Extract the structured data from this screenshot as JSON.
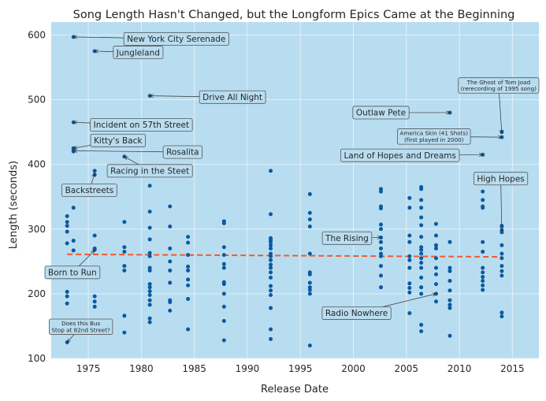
{
  "chart_data": {
    "type": "scatter",
    "title": "Song Length Hasn't Changed, but the Longform Epics Came at the Beginning",
    "xlabel": "Release Date",
    "ylabel": "Length (seconds)",
    "xlim": [
      1971.5,
      2017.5
    ],
    "ylim": [
      100,
      620
    ],
    "x_ticks": [
      1975,
      1980,
      1985,
      1990,
      1995,
      2000,
      2005,
      2010,
      2015
    ],
    "y_ticks": [
      100,
      200,
      300,
      400,
      500,
      600
    ],
    "grid": true,
    "plot_background": "#b9ddf0",
    "point_color": "#0a5aa0",
    "trend_color": "#f15a2b",
    "trend_line": {
      "x": [
        1973,
        2014
      ],
      "y": [
        261,
        257
      ]
    },
    "points": [
      [
        1973.0,
        320
      ],
      [
        1973.0,
        311
      ],
      [
        1973.0,
        305
      ],
      [
        1973.0,
        296
      ],
      [
        1973.0,
        278
      ],
      [
        1973.0,
        203
      ],
      [
        1973.0,
        196
      ],
      [
        1973.0,
        185
      ],
      [
        1973.0,
        125
      ],
      [
        1973.6,
        597
      ],
      [
        1973.6,
        465
      ],
      [
        1973.6,
        425
      ],
      [
        1973.6,
        423
      ],
      [
        1973.6,
        420
      ],
      [
        1973.6,
        333
      ],
      [
        1973.6,
        282
      ],
      [
        1973.6,
        267
      ],
      [
        1975.6,
        575
      ],
      [
        1975.6,
        390
      ],
      [
        1975.6,
        384
      ],
      [
        1975.6,
        290
      ],
      [
        1975.6,
        270
      ],
      [
        1975.6,
        268
      ],
      [
        1975.6,
        196
      ],
      [
        1975.6,
        188
      ],
      [
        1975.6,
        180
      ],
      [
        1978.4,
        412
      ],
      [
        1978.4,
        311
      ],
      [
        1978.4,
        272
      ],
      [
        1978.4,
        265
      ],
      [
        1978.4,
        243
      ],
      [
        1978.4,
        236
      ],
      [
        1978.4,
        166
      ],
      [
        1978.4,
        140
      ],
      [
        1980.8,
        506
      ],
      [
        1980.8,
        367
      ],
      [
        1980.8,
        327
      ],
      [
        1980.8,
        302
      ],
      [
        1980.8,
        284
      ],
      [
        1980.8,
        263
      ],
      [
        1980.8,
        258
      ],
      [
        1980.8,
        240
      ],
      [
        1980.8,
        236
      ],
      [
        1980.8,
        215
      ],
      [
        1980.8,
        210
      ],
      [
        1980.8,
        204
      ],
      [
        1980.8,
        198
      ],
      [
        1980.8,
        190
      ],
      [
        1980.8,
        183
      ],
      [
        1980.8,
        162
      ],
      [
        1980.8,
        156
      ],
      [
        1982.7,
        335
      ],
      [
        1982.7,
        304
      ],
      [
        1982.7,
        270
      ],
      [
        1982.7,
        250
      ],
      [
        1982.7,
        236
      ],
      [
        1982.7,
        217
      ],
      [
        1982.7,
        190
      ],
      [
        1982.7,
        187
      ],
      [
        1982.7,
        174
      ],
      [
        1984.4,
        288
      ],
      [
        1984.4,
        279
      ],
      [
        1984.4,
        260
      ],
      [
        1984.4,
        242
      ],
      [
        1984.4,
        236
      ],
      [
        1984.4,
        222
      ],
      [
        1984.4,
        213
      ],
      [
        1984.4,
        192
      ],
      [
        1984.4,
        145
      ],
      [
        1987.8,
        312
      ],
      [
        1987.8,
        309
      ],
      [
        1987.8,
        272
      ],
      [
        1987.8,
        260
      ],
      [
        1987.8,
        246
      ],
      [
        1987.8,
        240
      ],
      [
        1987.8,
        218
      ],
      [
        1987.8,
        215
      ],
      [
        1987.8,
        200
      ],
      [
        1987.8,
        180
      ],
      [
        1987.8,
        158
      ],
      [
        1987.8,
        128
      ],
      [
        1992.2,
        390
      ],
      [
        1992.2,
        323
      ],
      [
        1992.2,
        286
      ],
      [
        1992.2,
        283
      ],
      [
        1992.2,
        280
      ],
      [
        1992.2,
        275
      ],
      [
        1992.2,
        270
      ],
      [
        1992.2,
        262
      ],
      [
        1992.2,
        258
      ],
      [
        1992.2,
        252
      ],
      [
        1992.2,
        245
      ],
      [
        1992.2,
        240
      ],
      [
        1992.2,
        233
      ],
      [
        1992.2,
        225
      ],
      [
        1992.2,
        212
      ],
      [
        1992.2,
        205
      ],
      [
        1992.2,
        198
      ],
      [
        1992.2,
        178
      ],
      [
        1992.2,
        145
      ],
      [
        1992.2,
        130
      ],
      [
        1995.9,
        354
      ],
      [
        1995.9,
        325
      ],
      [
        1995.9,
        315
      ],
      [
        1995.9,
        304
      ],
      [
        1995.9,
        262
      ],
      [
        1995.9,
        233
      ],
      [
        1995.9,
        230
      ],
      [
        1995.9,
        217
      ],
      [
        1995.9,
        210
      ],
      [
        1995.9,
        206
      ],
      [
        1995.9,
        200
      ],
      [
        1995.9,
        120
      ],
      [
        2002.6,
        362
      ],
      [
        2002.6,
        358
      ],
      [
        2002.6,
        335
      ],
      [
        2002.6,
        332
      ],
      [
        2002.6,
        307
      ],
      [
        2002.6,
        300
      ],
      [
        2002.6,
        287
      ],
      [
        2002.6,
        280
      ],
      [
        2002.6,
        270
      ],
      [
        2002.6,
        262
      ],
      [
        2002.6,
        258
      ],
      [
        2002.6,
        243
      ],
      [
        2002.6,
        228
      ],
      [
        2002.6,
        210
      ],
      [
        2005.3,
        348
      ],
      [
        2005.3,
        333
      ],
      [
        2005.3,
        290
      ],
      [
        2005.3,
        280
      ],
      [
        2005.3,
        258
      ],
      [
        2005.3,
        252
      ],
      [
        2005.3,
        240
      ],
      [
        2005.3,
        216
      ],
      [
        2005.3,
        209
      ],
      [
        2005.3,
        202
      ],
      [
        2005.3,
        170
      ],
      [
        2006.4,
        365
      ],
      [
        2006.4,
        362
      ],
      [
        2006.4,
        345
      ],
      [
        2006.4,
        333
      ],
      [
        2006.4,
        318
      ],
      [
        2006.4,
        306
      ],
      [
        2006.4,
        288
      ],
      [
        2006.4,
        272
      ],
      [
        2006.4,
        268
      ],
      [
        2006.4,
        262
      ],
      [
        2006.4,
        255
      ],
      [
        2006.4,
        248
      ],
      [
        2006.4,
        240
      ],
      [
        2006.4,
        225
      ],
      [
        2006.4,
        210
      ],
      [
        2006.4,
        200
      ],
      [
        2006.4,
        152
      ],
      [
        2006.4,
        142
      ],
      [
        2007.8,
        308
      ],
      [
        2007.8,
        290
      ],
      [
        2007.8,
        275
      ],
      [
        2007.8,
        270
      ],
      [
        2007.8,
        255
      ],
      [
        2007.8,
        240
      ],
      [
        2007.8,
        230
      ],
      [
        2007.8,
        215
      ],
      [
        2007.8,
        200
      ],
      [
        2007.8,
        188
      ],
      [
        2009.1,
        480
      ],
      [
        2009.1,
        280
      ],
      [
        2009.1,
        240
      ],
      [
        2009.1,
        235
      ],
      [
        2009.1,
        220
      ],
      [
        2009.1,
        205
      ],
      [
        2009.1,
        190
      ],
      [
        2009.1,
        183
      ],
      [
        2009.1,
        178
      ],
      [
        2009.1,
        135
      ],
      [
        2012.2,
        415
      ],
      [
        2012.2,
        358
      ],
      [
        2012.2,
        345
      ],
      [
        2012.2,
        335
      ],
      [
        2012.2,
        333
      ],
      [
        2012.2,
        280
      ],
      [
        2012.2,
        265
      ],
      [
        2012.2,
        240
      ],
      [
        2012.2,
        233
      ],
      [
        2012.2,
        226
      ],
      [
        2012.2,
        220
      ],
      [
        2012.2,
        213
      ],
      [
        2012.2,
        206
      ],
      [
        2014.0,
        450
      ],
      [
        2014.0,
        442
      ],
      [
        2014.0,
        305
      ],
      [
        2014.0,
        298
      ],
      [
        2014.0,
        295
      ],
      [
        2014.0,
        275
      ],
      [
        2014.0,
        262
      ],
      [
        2014.0,
        255
      ],
      [
        2014.0,
        243
      ],
      [
        2014.0,
        235
      ],
      [
        2014.0,
        228
      ],
      [
        2014.0,
        171
      ],
      [
        2014.0,
        165
      ]
    ],
    "annotations": [
      {
        "text": "New York City Serenade",
        "point": [
          1973.6,
          597
        ],
        "label_at": [
          1983.3,
          594
        ],
        "size": "normal"
      },
      {
        "text": "Jungleland",
        "point": [
          1975.6,
          575
        ],
        "label_at": [
          1979.7,
          573
        ],
        "size": "normal"
      },
      {
        "text": "Drive All Night",
        "point": [
          1980.8,
          506
        ],
        "label_at": [
          1988.6,
          504
        ],
        "size": "normal"
      },
      {
        "text": "Incident on 57th Street",
        "point": [
          1973.6,
          465
        ],
        "label_at": [
          1980.0,
          461
        ],
        "size": "normal"
      },
      {
        "text": "Kitty's Back",
        "point": [
          1973.6,
          425
        ],
        "label_at": [
          1977.8,
          437
        ],
        "size": "normal"
      },
      {
        "text": "Rosalita",
        "point": [
          1973.6,
          421
        ],
        "label_at": [
          1983.9,
          419
        ],
        "size": "normal"
      },
      {
        "text": "Racing in the Steet",
        "point": [
          1978.4,
          412
        ],
        "label_at": [
          1980.8,
          390
        ],
        "size": "normal"
      },
      {
        "text": "Backstreets",
        "point": [
          1975.6,
          386
        ],
        "label_at": [
          1975.1,
          360
        ],
        "size": "normal"
      },
      {
        "text": "Born to Run",
        "point": [
          1975.6,
          267
        ],
        "label_at": [
          1973.5,
          233
        ],
        "size": "normal"
      },
      {
        "text": [
          "Does this Bus",
          "Stop at 82nd Street?"
        ],
        "point": [
          1973.0,
          125
        ],
        "label_at": [
          1974.3,
          149
        ],
        "size": "small"
      },
      {
        "text": "Outlaw Pete",
        "point": [
          2009.1,
          480
        ],
        "label_at": [
          2002.6,
          480
        ],
        "size": "normal"
      },
      {
        "text": [
          "The Ghost of Tom Joad",
          "(rerecording of 1995 song)"
        ],
        "point": [
          2014.0,
          448
        ],
        "label_at": [
          2013.7,
          522
        ],
        "size": "small"
      },
      {
        "text": [
          "America Skin (41 Shots)",
          "(first played in 2000)"
        ],
        "point": [
          2014.0,
          442
        ],
        "label_at": [
          2007.6,
          443
        ],
        "size": "small"
      },
      {
        "text": "Land of Hopes and Dreams",
        "point": [
          2012.2,
          415
        ],
        "label_at": [
          2004.4,
          414
        ],
        "size": "normal"
      },
      {
        "text": "High Hopes",
        "point": [
          2014.0,
          298
        ],
        "label_at": [
          2013.9,
          378
        ],
        "size": "normal"
      },
      {
        "text": "The Rising",
        "point": [
          2002.6,
          287
        ],
        "label_at": [
          1999.4,
          286
        ],
        "size": "normal"
      },
      {
        "text": "Radio Nowhere",
        "point": [
          2007.8,
          200
        ],
        "label_at": [
          2000.3,
          170
        ],
        "size": "normal"
      }
    ]
  }
}
